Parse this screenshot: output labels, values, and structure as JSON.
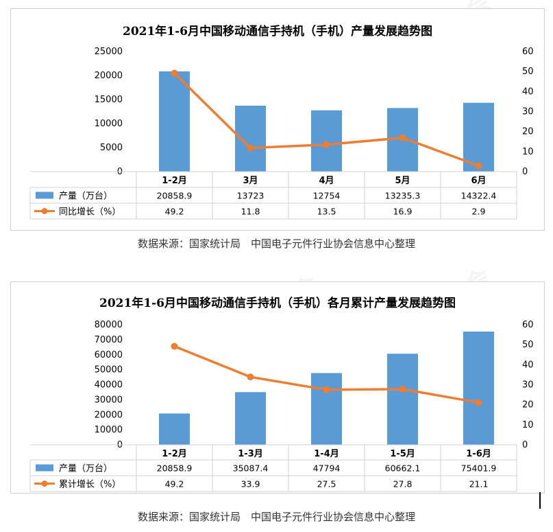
{
  "watermark": "中国电子元件行业协会",
  "chart_data": [
    {
      "type": "bar",
      "title": "2021年1-6月中国移动通信手持机（手机）产量发展趋势图",
      "categories": [
        "1-2月",
        "3月",
        "4月",
        "5月",
        "6月"
      ],
      "series": [
        {
          "name": "产量（万台）",
          "kind": "bar",
          "axis": "left",
          "values": [
            20858.9,
            13723,
            12754,
            13235.3,
            14322.4
          ],
          "labels": [
            "20858.9",
            "13723",
            "12754",
            "13235.3",
            "14322.4"
          ],
          "color": "#5b9bd5"
        },
        {
          "name": "同比增长（%）",
          "kind": "line",
          "axis": "right",
          "values": [
            49.2,
            11.8,
            13.5,
            16.9,
            2.9
          ],
          "labels": [
            "49.2",
            "11.8",
            "13.5",
            "16.9",
            "2.9"
          ],
          "color": "#ed7d31"
        }
      ],
      "left_axis": {
        "min": 0,
        "max": 25000,
        "step": 5000,
        "ticks": [
          "25000",
          "20000",
          "15000",
          "10000",
          "5000",
          "0"
        ]
      },
      "right_axis": {
        "min": 0,
        "max": 60,
        "step": 10,
        "ticks": [
          "60",
          "50",
          "40",
          "30",
          "20",
          "10",
          "0"
        ]
      },
      "grid": false,
      "legend": "data-table",
      "source": "数据来源：国家统计局　中国电子元件行业协会信息中心整理"
    },
    {
      "type": "bar",
      "title": "2021年1-6月中国移动通信手持机（手机）各月累计产量发展趋势图",
      "categories": [
        "1-2月",
        "1-3月",
        "1-4月",
        "1-5月",
        "1-6月"
      ],
      "series": [
        {
          "name": "产量（万台）",
          "kind": "bar",
          "axis": "left",
          "values": [
            20858.9,
            35087.4,
            47794,
            60662.1,
            75401.9
          ],
          "labels": [
            "20858.9",
            "35087.4",
            "47794",
            "60662.1",
            "75401.9"
          ],
          "color": "#5b9bd5"
        },
        {
          "name": "累计增长（%）",
          "kind": "line",
          "axis": "right",
          "values": [
            49.2,
            33.9,
            27.5,
            27.8,
            21.1
          ],
          "labels": [
            "49.2",
            "33.9",
            "27.5",
            "27.8",
            "21.1"
          ],
          "color": "#ed7d31"
        }
      ],
      "left_axis": {
        "min": 0,
        "max": 80000,
        "step": 10000,
        "ticks": [
          "80000",
          "70000",
          "60000",
          "50000",
          "40000",
          "30000",
          "20000",
          "10000",
          "0"
        ]
      },
      "right_axis": {
        "min": 0,
        "max": 60,
        "step": 10,
        "ticks": [
          "60",
          "50",
          "40",
          "30",
          "20",
          "10",
          "0"
        ]
      },
      "grid": false,
      "legend": "data-table",
      "source": "数据来源：国家统计局　中国电子元件行业协会信息中心整理"
    }
  ]
}
